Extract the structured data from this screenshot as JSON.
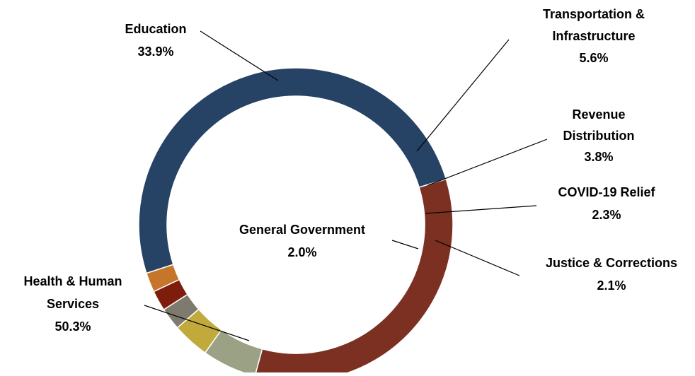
{
  "chart_data": {
    "type": "pie",
    "title": "",
    "slices": [
      {
        "label": "Health & Human Services",
        "value": 50.3,
        "display": "50.3%",
        "color": "#264264"
      },
      {
        "label": "Education",
        "value": 33.9,
        "display": "33.9%",
        "color": "#7b3022"
      },
      {
        "label": "Transportation & Infrastructure",
        "value": 5.6,
        "display": "5.6%",
        "color": "#9aa184"
      },
      {
        "label": "Revenue Distribution",
        "value": 3.8,
        "display": "3.8%",
        "color": "#c1a93b"
      },
      {
        "label": "COVID-19 Relief",
        "value": 2.3,
        "display": "2.3%",
        "color": "#7e7a6e"
      },
      {
        "label": "Justice & Corrections",
        "value": 2.1,
        "display": "2.1%",
        "color": "#7f1d0c"
      },
      {
        "label": "General Government",
        "value": 2.0,
        "display": "2.0%",
        "color": "#c5762a"
      }
    ]
  }
}
